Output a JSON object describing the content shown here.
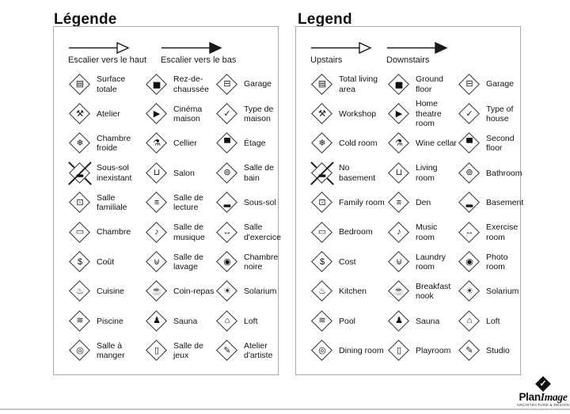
{
  "page": {
    "background": "#ffffff",
    "ink": "#141414",
    "panel_border": "#a9a9a9"
  },
  "panels": [
    {
      "title": "Légende",
      "arrows": [
        {
          "name": "stairs-up-arrow",
          "style": "outline",
          "label": "Escalier vers le haut"
        },
        {
          "name": "stairs-down-arrow",
          "style": "filled",
          "label": "Escalier vers le bas"
        }
      ],
      "items": [
        {
          "icon": "total-living-area-icon",
          "glyph": "▤",
          "label": "Surface totale"
        },
        {
          "icon": "ground-floor-icon",
          "glyph": "▅",
          "label": "Rez-de-chaussée"
        },
        {
          "icon": "garage-icon",
          "glyph": "⊟",
          "label": "Garage"
        },
        {
          "icon": "workshop-icon",
          "glyph": "⚒",
          "label": "Atelier"
        },
        {
          "icon": "home-theatre-icon",
          "glyph": "▶",
          "label": "Cinéma maison"
        },
        {
          "icon": "type-of-house-icon",
          "glyph": "✓",
          "label": "Type de maison"
        },
        {
          "icon": "cold-room-icon",
          "glyph": "❄",
          "label": "Chambre froide"
        },
        {
          "icon": "wine-cellar-icon",
          "glyph": "⚗",
          "label": "Cellier"
        },
        {
          "icon": "second-floor-icon",
          "glyph": "▀",
          "label": "Étage"
        },
        {
          "icon": "no-basement-icon",
          "glyph": "▂",
          "overlay": "x",
          "label": "Sous-sol inexistant"
        },
        {
          "icon": "living-room-icon",
          "glyph": "⊔",
          "label": "Salon"
        },
        {
          "icon": "bathroom-icon",
          "glyph": "⊚",
          "label": "Salle de bain"
        },
        {
          "icon": "family-room-icon",
          "glyph": "⊡",
          "label": "Salle familiale"
        },
        {
          "icon": "den-icon",
          "glyph": "≡",
          "label": "Salle de lecture"
        },
        {
          "icon": "basement-icon",
          "glyph": "▂",
          "label": "Sous-sol"
        },
        {
          "icon": "bedroom-icon",
          "glyph": "▭",
          "label": "Chambre"
        },
        {
          "icon": "music-room-icon",
          "glyph": "♪",
          "label": "Salle de musique"
        },
        {
          "icon": "exercise-room-icon",
          "glyph": "↔",
          "label": "Salle d'exercice"
        },
        {
          "icon": "cost-icon",
          "glyph": "$",
          "label": "Coût"
        },
        {
          "icon": "laundry-room-icon",
          "glyph": "⊎",
          "label": "Salle de lavage"
        },
        {
          "icon": "photo-room-icon",
          "glyph": "◉",
          "label": "Chambre noire"
        },
        {
          "icon": "kitchen-icon",
          "glyph": "♨",
          "label": "Cuisine"
        },
        {
          "icon": "breakfast-nook-icon",
          "glyph": "☕",
          "label": "Coin-repas"
        },
        {
          "icon": "solarium-icon",
          "glyph": "☀",
          "label": "Solarium"
        },
        {
          "icon": "pool-icon",
          "glyph": "≋",
          "label": "Piscine"
        },
        {
          "icon": "sauna-icon",
          "glyph": "♟",
          "label": "Sauna"
        },
        {
          "icon": "loft-icon",
          "glyph": "⌂",
          "label": "Loft"
        },
        {
          "icon": "dining-room-icon",
          "glyph": "◎",
          "label": "Salle à manger"
        },
        {
          "icon": "playroom-icon",
          "glyph": "▯",
          "label": "Salle de jeux"
        },
        {
          "icon": "studio-icon",
          "glyph": "✎",
          "label": "Atelier d'artiste"
        }
      ]
    },
    {
      "title": "Legend",
      "arrows": [
        {
          "name": "stairs-up-arrow",
          "style": "outline",
          "label": "Upstairs"
        },
        {
          "name": "stairs-down-arrow",
          "style": "filled",
          "label": "Downstairs"
        }
      ],
      "items": [
        {
          "icon": "total-living-area-icon",
          "glyph": "▤",
          "label": "Total living area"
        },
        {
          "icon": "ground-floor-icon",
          "glyph": "▅",
          "label": "Ground floor"
        },
        {
          "icon": "garage-icon",
          "glyph": "⊟",
          "label": "Garage"
        },
        {
          "icon": "workshop-icon",
          "glyph": "⚒",
          "label": "Workshop"
        },
        {
          "icon": "home-theatre-icon",
          "glyph": "▶",
          "label": "Home theatre room"
        },
        {
          "icon": "type-of-house-icon",
          "glyph": "✓",
          "label": "Type of house"
        },
        {
          "icon": "cold-room-icon",
          "glyph": "❄",
          "label": "Cold room"
        },
        {
          "icon": "wine-cellar-icon",
          "glyph": "⚗",
          "label": "Wine cellar"
        },
        {
          "icon": "second-floor-icon",
          "glyph": "▀",
          "label": "Second floor"
        },
        {
          "icon": "no-basement-icon",
          "glyph": "▂",
          "overlay": "x",
          "label": "No basement"
        },
        {
          "icon": "living-room-icon",
          "glyph": "⊔",
          "label": "Living room"
        },
        {
          "icon": "bathroom-icon",
          "glyph": "⊚",
          "label": "Bathroom"
        },
        {
          "icon": "family-room-icon",
          "glyph": "⊡",
          "label": "Family room"
        },
        {
          "icon": "den-icon",
          "glyph": "≡",
          "label": "Den"
        },
        {
          "icon": "basement-icon",
          "glyph": "▂",
          "label": "Basement"
        },
        {
          "icon": "bedroom-icon",
          "glyph": "▭",
          "label": "Bedroom"
        },
        {
          "icon": "music-room-icon",
          "glyph": "♪",
          "label": "Music room"
        },
        {
          "icon": "exercise-room-icon",
          "glyph": "↔",
          "label": "Exercise room"
        },
        {
          "icon": "cost-icon",
          "glyph": "$",
          "label": "Cost"
        },
        {
          "icon": "laundry-room-icon",
          "glyph": "⊎",
          "label": "Laundry room"
        },
        {
          "icon": "photo-room-icon",
          "glyph": "◉",
          "label": "Photo room"
        },
        {
          "icon": "kitchen-icon",
          "glyph": "♨",
          "label": "Kitchen"
        },
        {
          "icon": "breakfast-nook-icon",
          "glyph": "☕",
          "label": "Breakfast nook"
        },
        {
          "icon": "solarium-icon",
          "glyph": "☀",
          "label": "Solarium"
        },
        {
          "icon": "pool-icon",
          "glyph": "≋",
          "label": "Pool"
        },
        {
          "icon": "sauna-icon",
          "glyph": "♟",
          "label": "Sauna"
        },
        {
          "icon": "loft-icon",
          "glyph": "⌂",
          "label": "Loft"
        },
        {
          "icon": "dining-room-icon",
          "glyph": "◎",
          "label": "Dining room"
        },
        {
          "icon": "playroom-icon",
          "glyph": "▯",
          "label": "Playroom"
        },
        {
          "icon": "studio-icon",
          "glyph": "✎",
          "label": "Studio"
        }
      ]
    }
  ],
  "logo": {
    "brand_bold": "Plan",
    "brand_italic": "Image",
    "tagline": "Architecture & Design",
    "mark_glyph": "✓"
  }
}
